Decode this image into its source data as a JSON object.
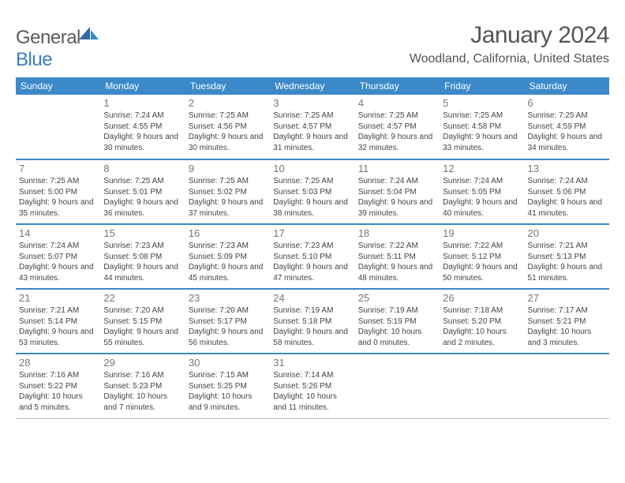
{
  "brand": {
    "general": "General",
    "blue": "Blue"
  },
  "title": "January 2024",
  "location": "Woodland, California, United States",
  "colors": {
    "header_bg": "#3b89c9",
    "row_divider": "#3b89c9",
    "brand_blue": "#3b7ec4"
  },
  "day_headers": [
    "Sunday",
    "Monday",
    "Tuesday",
    "Wednesday",
    "Thursday",
    "Friday",
    "Saturday"
  ],
  "weeks": [
    [
      {
        "n": "",
        "sr": "",
        "ss": "",
        "dl": "",
        "empty": true
      },
      {
        "n": "1",
        "sr": "Sunrise: 7:24 AM",
        "ss": "Sunset: 4:55 PM",
        "dl": "Daylight: 9 hours and 30 minutes."
      },
      {
        "n": "2",
        "sr": "Sunrise: 7:25 AM",
        "ss": "Sunset: 4:56 PM",
        "dl": "Daylight: 9 hours and 30 minutes."
      },
      {
        "n": "3",
        "sr": "Sunrise: 7:25 AM",
        "ss": "Sunset: 4:57 PM",
        "dl": "Daylight: 9 hours and 31 minutes."
      },
      {
        "n": "4",
        "sr": "Sunrise: 7:25 AM",
        "ss": "Sunset: 4:57 PM",
        "dl": "Daylight: 9 hours and 32 minutes."
      },
      {
        "n": "5",
        "sr": "Sunrise: 7:25 AM",
        "ss": "Sunset: 4:58 PM",
        "dl": "Daylight: 9 hours and 33 minutes."
      },
      {
        "n": "6",
        "sr": "Sunrise: 7:25 AM",
        "ss": "Sunset: 4:59 PM",
        "dl": "Daylight: 9 hours and 34 minutes."
      }
    ],
    [
      {
        "n": "7",
        "sr": "Sunrise: 7:25 AM",
        "ss": "Sunset: 5:00 PM",
        "dl": "Daylight: 9 hours and 35 minutes."
      },
      {
        "n": "8",
        "sr": "Sunrise: 7:25 AM",
        "ss": "Sunset: 5:01 PM",
        "dl": "Daylight: 9 hours and 36 minutes."
      },
      {
        "n": "9",
        "sr": "Sunrise: 7:25 AM",
        "ss": "Sunset: 5:02 PM",
        "dl": "Daylight: 9 hours and 37 minutes."
      },
      {
        "n": "10",
        "sr": "Sunrise: 7:25 AM",
        "ss": "Sunset: 5:03 PM",
        "dl": "Daylight: 9 hours and 38 minutes."
      },
      {
        "n": "11",
        "sr": "Sunrise: 7:24 AM",
        "ss": "Sunset: 5:04 PM",
        "dl": "Daylight: 9 hours and 39 minutes."
      },
      {
        "n": "12",
        "sr": "Sunrise: 7:24 AM",
        "ss": "Sunset: 5:05 PM",
        "dl": "Daylight: 9 hours and 40 minutes."
      },
      {
        "n": "13",
        "sr": "Sunrise: 7:24 AM",
        "ss": "Sunset: 5:06 PM",
        "dl": "Daylight: 9 hours and 41 minutes."
      }
    ],
    [
      {
        "n": "14",
        "sr": "Sunrise: 7:24 AM",
        "ss": "Sunset: 5:07 PM",
        "dl": "Daylight: 9 hours and 43 minutes."
      },
      {
        "n": "15",
        "sr": "Sunrise: 7:23 AM",
        "ss": "Sunset: 5:08 PM",
        "dl": "Daylight: 9 hours and 44 minutes."
      },
      {
        "n": "16",
        "sr": "Sunrise: 7:23 AM",
        "ss": "Sunset: 5:09 PM",
        "dl": "Daylight: 9 hours and 45 minutes."
      },
      {
        "n": "17",
        "sr": "Sunrise: 7:23 AM",
        "ss": "Sunset: 5:10 PM",
        "dl": "Daylight: 9 hours and 47 minutes."
      },
      {
        "n": "18",
        "sr": "Sunrise: 7:22 AM",
        "ss": "Sunset: 5:11 PM",
        "dl": "Daylight: 9 hours and 48 minutes."
      },
      {
        "n": "19",
        "sr": "Sunrise: 7:22 AM",
        "ss": "Sunset: 5:12 PM",
        "dl": "Daylight: 9 hours and 50 minutes."
      },
      {
        "n": "20",
        "sr": "Sunrise: 7:21 AM",
        "ss": "Sunset: 5:13 PM",
        "dl": "Daylight: 9 hours and 51 minutes."
      }
    ],
    [
      {
        "n": "21",
        "sr": "Sunrise: 7:21 AM",
        "ss": "Sunset: 5:14 PM",
        "dl": "Daylight: 9 hours and 53 minutes."
      },
      {
        "n": "22",
        "sr": "Sunrise: 7:20 AM",
        "ss": "Sunset: 5:15 PM",
        "dl": "Daylight: 9 hours and 55 minutes."
      },
      {
        "n": "23",
        "sr": "Sunrise: 7:20 AM",
        "ss": "Sunset: 5:17 PM",
        "dl": "Daylight: 9 hours and 56 minutes."
      },
      {
        "n": "24",
        "sr": "Sunrise: 7:19 AM",
        "ss": "Sunset: 5:18 PM",
        "dl": "Daylight: 9 hours and 58 minutes."
      },
      {
        "n": "25",
        "sr": "Sunrise: 7:19 AM",
        "ss": "Sunset: 5:19 PM",
        "dl": "Daylight: 10 hours and 0 minutes."
      },
      {
        "n": "26",
        "sr": "Sunrise: 7:18 AM",
        "ss": "Sunset: 5:20 PM",
        "dl": "Daylight: 10 hours and 2 minutes."
      },
      {
        "n": "27",
        "sr": "Sunrise: 7:17 AM",
        "ss": "Sunset: 5:21 PM",
        "dl": "Daylight: 10 hours and 3 minutes."
      }
    ],
    [
      {
        "n": "28",
        "sr": "Sunrise: 7:16 AM",
        "ss": "Sunset: 5:22 PM",
        "dl": "Daylight: 10 hours and 5 minutes."
      },
      {
        "n": "29",
        "sr": "Sunrise: 7:16 AM",
        "ss": "Sunset: 5:23 PM",
        "dl": "Daylight: 10 hours and 7 minutes."
      },
      {
        "n": "30",
        "sr": "Sunrise: 7:15 AM",
        "ss": "Sunset: 5:25 PM",
        "dl": "Daylight: 10 hours and 9 minutes."
      },
      {
        "n": "31",
        "sr": "Sunrise: 7:14 AM",
        "ss": "Sunset: 5:26 PM",
        "dl": "Daylight: 10 hours and 11 minutes."
      },
      {
        "n": "",
        "sr": "",
        "ss": "",
        "dl": "",
        "empty": true
      },
      {
        "n": "",
        "sr": "",
        "ss": "",
        "dl": "",
        "empty": true
      },
      {
        "n": "",
        "sr": "",
        "ss": "",
        "dl": "",
        "empty": true
      }
    ]
  ]
}
